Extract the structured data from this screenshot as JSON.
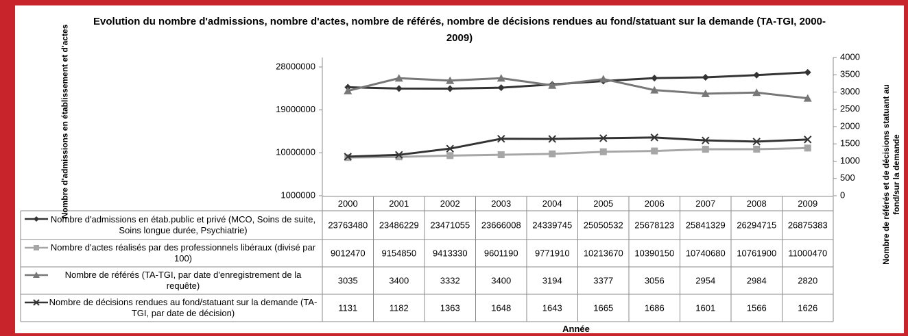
{
  "chart_data": {
    "type": "line",
    "title": "Evolution du nombre d'admissions, nombre d'actes, nombre de référés, nombre de décisions rendues au fond/statuant sur la demande (TA-TGI, 2000-2009)",
    "ylabel": "Nombre d'admissions en établissement et d'actes",
    "y2label": "Nombre de référés et de décisions statuant au fond/sur la demande",
    "xlabel": "Année",
    "categories": [
      "2000",
      "2001",
      "2002",
      "2003",
      "2004",
      "2005",
      "2006",
      "2007",
      "2008",
      "2009"
    ],
    "ylim": [
      1000000,
      30000000
    ],
    "yticks": [
      1000000,
      10000000,
      19000000,
      28000000
    ],
    "y2lim": [
      0,
      4000
    ],
    "y2ticks": [
      0,
      500,
      1000,
      1500,
      2000,
      2500,
      3000,
      3500,
      4000
    ],
    "series": [
      {
        "name": "Nombre d'admissions en étab.public et privé (MCO, Soins de suite, Soins longue durée, Psychiatrie)",
        "color": "#333333",
        "marker": "diamond",
        "values": [
          23763480,
          23486229,
          23471055,
          23666008,
          24339745,
          25050532,
          25678123,
          25841329,
          26294715,
          26875383
        ]
      },
      {
        "name": "Nombre d'actes réalisés par des professionnels libéraux (divisé par 100)",
        "color": "#a6a6a6",
        "marker": "square",
        "values": [
          9012470,
          9154850,
          9413330,
          9601190,
          9771910,
          10213670,
          10390150,
          10740680,
          10761900,
          11000470
        ]
      },
      {
        "name": "Nombre de référés (TA-TGI, par date d'enregistrement de la requête)",
        "color": "#777777",
        "marker": "triangle",
        "axis": "y2",
        "values": [
          3035,
          3400,
          3332,
          3400,
          3194,
          3377,
          3056,
          2954,
          2984,
          2820
        ]
      },
      {
        "name": "Nombre de décisions rendues au fond/statuant sur la demande (TA-TGI, par date de décision)",
        "color": "#333333",
        "marker": "x",
        "axis": "y2",
        "values": [
          1131,
          1182,
          1363,
          1648,
          1643,
          1665,
          1686,
          1601,
          1566,
          1626
        ]
      }
    ]
  }
}
